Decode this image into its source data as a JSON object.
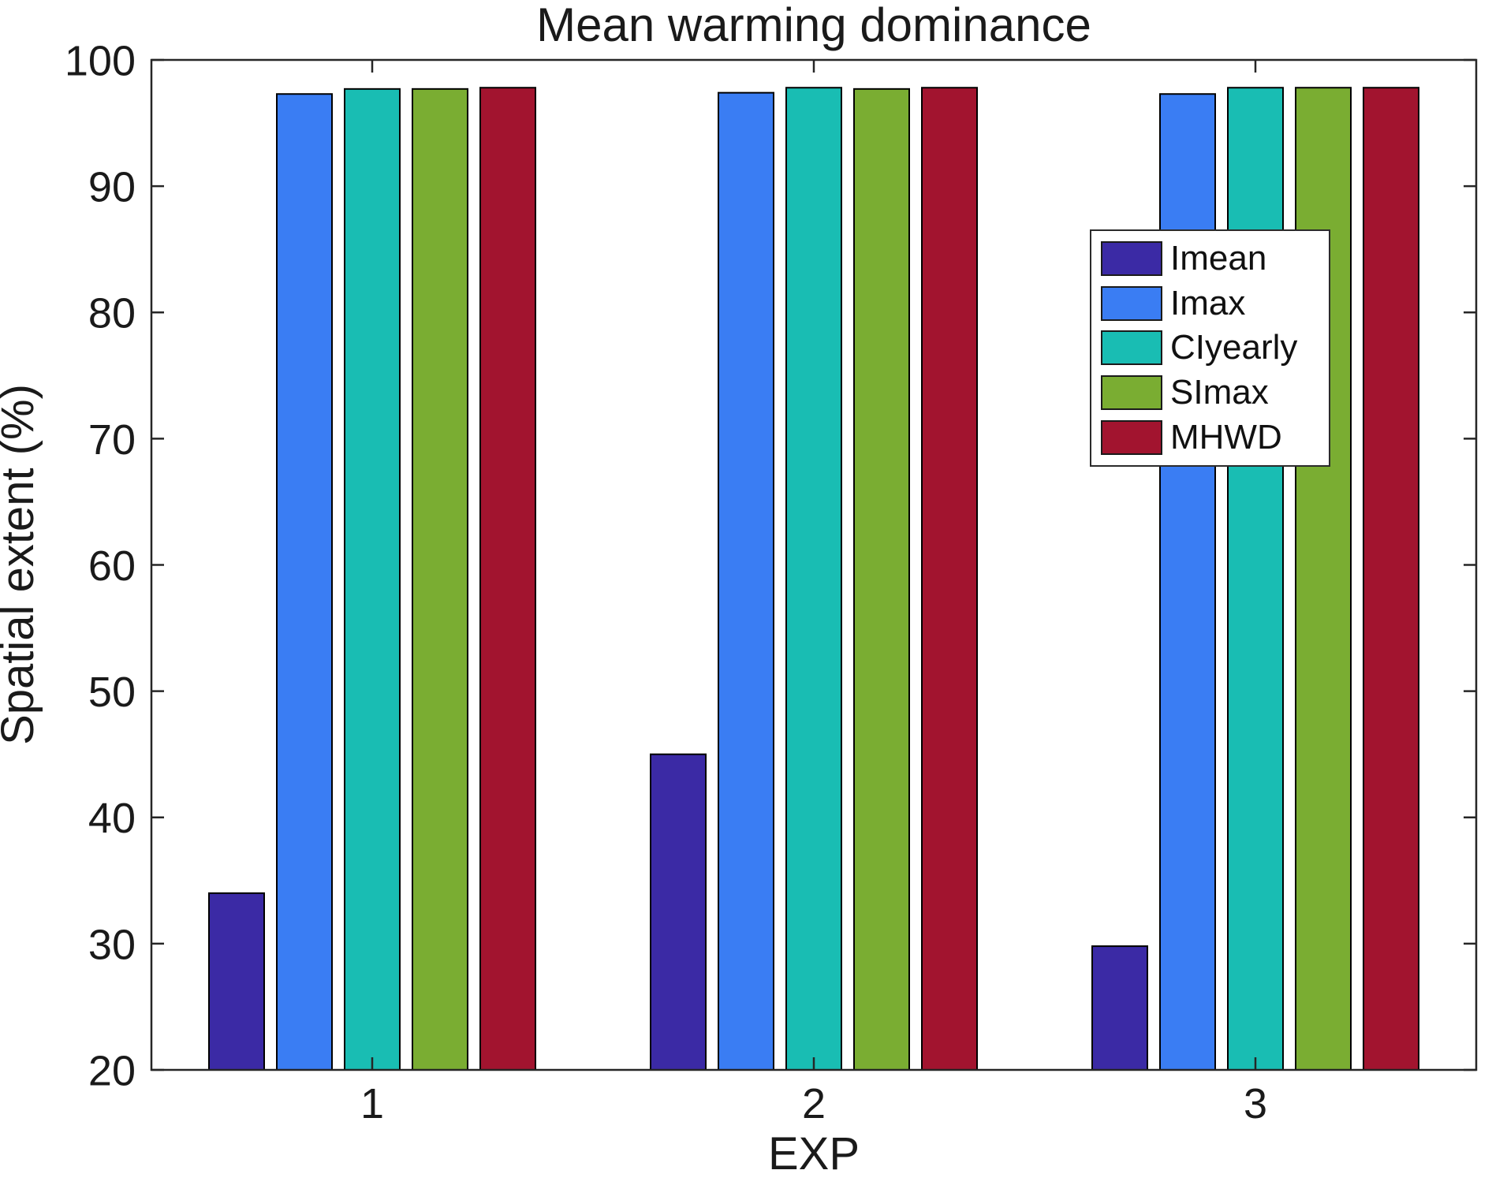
{
  "figure": {
    "background_color": "#ffffff",
    "axis_color": "#262626",
    "text_color": "#1a1a1a"
  },
  "chart_data": {
    "type": "bar",
    "title": "Mean warming dominance",
    "xlabel": "EXP",
    "ylabel": "Spatial extent (%)",
    "categories": [
      "1",
      "2",
      "3"
    ],
    "series": [
      {
        "name": "Imean",
        "color": "#3B2AA5",
        "values": [
          34.0,
          45.0,
          29.8
        ]
      },
      {
        "name": "Imax",
        "color": "#3A7DF3",
        "values": [
          97.3,
          97.4,
          97.3
        ]
      },
      {
        "name": "CIyearly",
        "color": "#19BDB3",
        "values": [
          97.7,
          97.8,
          97.8
        ]
      },
      {
        "name": "SImax",
        "color": "#7AAD32",
        "values": [
          97.7,
          97.7,
          97.8
        ]
      },
      {
        "name": "MHWD",
        "color": "#A2142F",
        "values": [
          97.8,
          97.8,
          97.8
        ]
      }
    ],
    "ylim": [
      20,
      100
    ],
    "yticks": [
      20,
      30,
      40,
      50,
      60,
      70,
      80,
      90,
      100
    ],
    "grid": false,
    "legend_position": "upper-right-inside",
    "bar_edge_color": "#000000"
  }
}
